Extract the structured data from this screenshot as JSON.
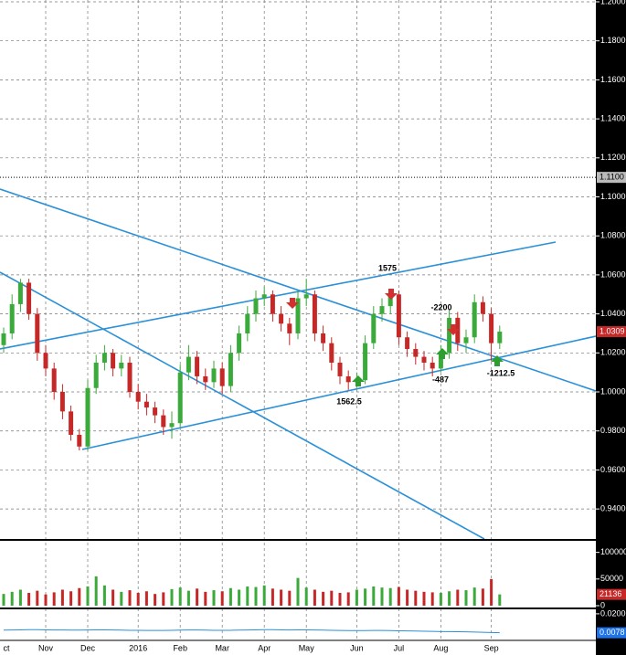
{
  "chart_data": {
    "type": "candlestick",
    "categories": [
      "ct",
      null,
      null,
      null,
      null,
      "Nov",
      null,
      null,
      null,
      null,
      "Dec",
      null,
      null,
      null,
      null,
      null,
      "2016",
      null,
      null,
      null,
      null,
      "Feb",
      null,
      null,
      null,
      null,
      "Mar",
      null,
      null,
      null,
      null,
      "Apr",
      null,
      null,
      null,
      null,
      "May",
      null,
      null,
      null,
      null,
      null,
      "Jun",
      null,
      null,
      null,
      null,
      "Jul",
      null,
      null,
      null,
      null,
      "Aug",
      null,
      null,
      null,
      null,
      null,
      "Sep",
      null
    ],
    "open": [
      1.024,
      1.03,
      1.045,
      1.056,
      1.04,
      1.02,
      1.012,
      1.0,
      0.99,
      0.978,
      0.972,
      1.002,
      1.015,
      1.02,
      1.012,
      1.015,
      1.0,
      0.995,
      0.992,
      0.988,
      0.982,
      0.984,
      1.01,
      1.018,
      1.008,
      1.005,
      1.012,
      1.003,
      1.02,
      1.03,
      1.04,
      1.048,
      1.05,
      1.04,
      1.035,
      1.03,
      1.048,
      1.05,
      1.03,
      1.025,
      1.015,
      1.008,
      1.005,
      1.006,
      1.025,
      1.04,
      1.044,
      1.05,
      1.028,
      1.022,
      1.018,
      1.015,
      1.012,
      1.02,
      1.038,
      1.025,
      1.028,
      1.046,
      1.04,
      1.025
    ],
    "high": [
      1.033,
      1.05,
      1.058,
      1.058,
      1.043,
      1.024,
      1.015,
      1.004,
      0.993,
      0.981,
      1.006,
      1.019,
      1.024,
      1.022,
      1.019,
      1.018,
      1.004,
      0.999,
      0.995,
      0.991,
      0.99,
      1.014,
      1.024,
      1.021,
      1.012,
      1.016,
      1.015,
      1.024,
      1.034,
      1.044,
      1.052,
      1.054,
      1.052,
      1.044,
      1.038,
      1.052,
      1.058,
      1.052,
      1.034,
      1.028,
      1.018,
      1.011,
      1.01,
      1.029,
      1.044,
      1.048,
      1.052,
      1.052,
      1.031,
      1.025,
      1.021,
      1.018,
      1.024,
      1.042,
      1.041,
      1.032,
      1.05,
      1.049,
      1.043,
      1.034
    ],
    "low": [
      1.02,
      1.027,
      1.041,
      1.037,
      1.016,
      1.008,
      0.996,
      0.986,
      0.975,
      0.97,
      0.97,
      0.999,
      1.011,
      1.008,
      1.008,
      0.997,
      0.991,
      0.988,
      0.984,
      0.978,
      0.976,
      0.982,
      1.006,
      1.004,
      1.001,
      1.002,
      0.999,
      1.0,
      1.016,
      1.026,
      1.036,
      1.044,
      1.036,
      1.031,
      1.024,
      1.027,
      1.044,
      1.026,
      1.021,
      1.011,
      1.004,
      1.001,
      1.002,
      1.004,
      1.022,
      1.036,
      1.04,
      1.024,
      1.018,
      1.014,
      1.011,
      1.008,
      1.01,
      1.017,
      1.021,
      1.02,
      1.025,
      1.036,
      1.016,
      1.022
    ],
    "close": [
      1.03,
      1.045,
      1.056,
      1.04,
      1.02,
      1.012,
      1.0,
      0.99,
      0.978,
      0.972,
      1.002,
      1.015,
      1.02,
      1.012,
      1.015,
      1.0,
      0.995,
      0.992,
      0.988,
      0.982,
      0.984,
      1.01,
      1.018,
      1.008,
      1.005,
      1.012,
      1.003,
      1.02,
      1.03,
      1.04,
      1.048,
      1.05,
      1.04,
      1.035,
      1.03,
      1.048,
      1.05,
      1.03,
      1.025,
      1.015,
      1.008,
      1.005,
      1.006,
      1.025,
      1.04,
      1.044,
      1.05,
      1.028,
      1.022,
      1.018,
      1.015,
      1.012,
      1.02,
      1.038,
      1.025,
      1.028,
      1.046,
      1.04,
      1.025,
      1.0309
    ],
    "up_color": "#3aaa3a",
    "down_color": "#c62828",
    "ylim": [
      0.9246,
      1.2
    ],
    "yticks": [
      {
        "value": 1.2,
        "label": "1.2000"
      },
      {
        "value": 1.18,
        "label": "1.1800"
      },
      {
        "value": 1.16,
        "label": "1.1600"
      },
      {
        "value": 1.14,
        "label": "1.1400"
      },
      {
        "value": 1.12,
        "label": "1.1200"
      },
      {
        "value": 1.1,
        "label": "1.1000"
      },
      {
        "value": 1.08,
        "label": "1.0800"
      },
      {
        "value": 1.06,
        "label": "1.0600"
      },
      {
        "value": 1.04,
        "label": "1.0400"
      },
      {
        "value": 1.02,
        "label": "1.0200"
      },
      {
        "value": 1.0,
        "label": "1.0000"
      },
      {
        "value": 0.98,
        "label": "0.9800"
      },
      {
        "value": 0.96,
        "label": "0.9600"
      },
      {
        "value": 0.94,
        "label": "0.9400"
      }
    ],
    "level": {
      "value": 1.11,
      "label": "1.1100"
    },
    "grid": true,
    "annotations": [
      "1575",
      "-2200",
      "1562.5",
      "-487",
      "-1212.5"
    ],
    "volume": {
      "values": [
        22000,
        26000,
        30000,
        24000,
        28000,
        21000,
        25000,
        30000,
        27000,
        33000,
        36000,
        55000,
        38000,
        30000,
        26000,
        29000,
        24000,
        27000,
        22000,
        25000,
        31000,
        34000,
        28000,
        32000,
        26000,
        29000,
        27000,
        33000,
        30000,
        36000,
        35000,
        38000,
        32000,
        30000,
        28000,
        52000,
        34000,
        30000,
        26000,
        28000,
        24000,
        25000,
        30000,
        32000,
        36000,
        34000,
        33000,
        35000,
        30000,
        28000,
        26000,
        25000,
        24000,
        27000,
        30000,
        29000,
        34000,
        32000,
        50000,
        21136
      ],
      "ylim": [
        0,
        120000
      ],
      "yticks": [
        100000,
        50000,
        0
      ]
    },
    "indicator": {
      "values": [
        0.0095,
        0.0096,
        0.0097,
        0.0098,
        0.0098,
        0.0097,
        0.0096,
        0.0096,
        0.0095,
        0.0095,
        0.0096,
        0.0097,
        0.0097,
        0.0096,
        0.0095,
        0.0094,
        0.0094,
        0.0093,
        0.0093,
        0.0093,
        0.0094,
        0.0095,
        0.0096,
        0.0096,
        0.0095,
        0.0094,
        0.0094,
        0.0094,
        0.0095,
        0.0096,
        0.0097,
        0.0098,
        0.0098,
        0.0097,
        0.0096,
        0.0097,
        0.0097,
        0.0096,
        0.0095,
        0.0094,
        0.0093,
        0.0092,
        0.0092,
        0.0092,
        0.0093,
        0.0093,
        0.0092,
        0.0091,
        0.009,
        0.0089,
        0.0088,
        0.0087,
        0.0086,
        0.0086,
        0.0085,
        0.0084,
        0.0083,
        0.0081,
        0.008,
        0.0078
      ],
      "color": "#2a90d8",
      "ylim": [
        0.0035,
        0.0223
      ],
      "yticks": [
        {
          "value": 0.02,
          "label": "0.0200"
        }
      ]
    }
  }
}
